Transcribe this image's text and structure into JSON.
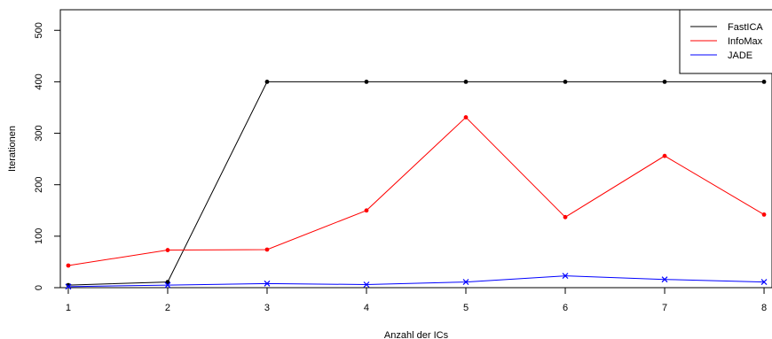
{
  "chart_data": {
    "type": "line",
    "title": "",
    "xlabel": "Anzahl der ICs",
    "ylabel": "Iterationen",
    "x": [
      1,
      2,
      3,
      4,
      5,
      6,
      7,
      8
    ],
    "xlim": [
      0.92,
      8.08
    ],
    "ylim": [
      0,
      540
    ],
    "x_ticks": [
      1,
      2,
      3,
      4,
      5,
      6,
      7,
      8
    ],
    "y_ticks": [
      0,
      100,
      200,
      300,
      400,
      500
    ],
    "grid": false,
    "legend_position": "top-right",
    "series": [
      {
        "name": "FastICA",
        "color": "#000000",
        "marker": "dot",
        "values": [
          5,
          11,
          400,
          400,
          400,
          400,
          400,
          400
        ]
      },
      {
        "name": "InfoMax",
        "color": "#ff0000",
        "marker": "dot",
        "values": [
          43,
          73,
          74,
          150,
          331,
          137,
          256,
          142
        ]
      },
      {
        "name": "JADE",
        "color": "#0000ff",
        "marker": "x",
        "values": [
          2,
          5,
          8,
          6,
          11,
          23,
          16,
          11
        ]
      }
    ]
  }
}
